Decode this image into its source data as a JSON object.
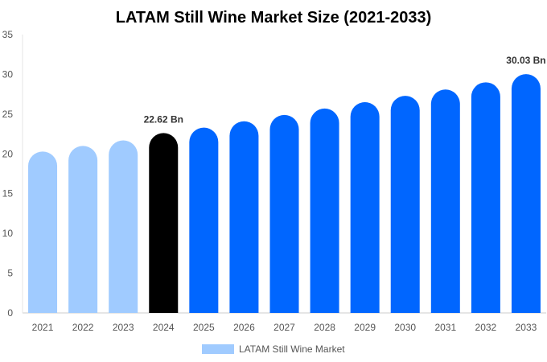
{
  "chart_data": {
    "type": "bar",
    "title": "LATAM Still Wine Market Size (2021-2033)",
    "categories": [
      "2021",
      "2022",
      "2023",
      "2024",
      "2025",
      "2026",
      "2027",
      "2028",
      "2029",
      "2030",
      "2031",
      "2032",
      "2033"
    ],
    "series": [
      {
        "name": "LATAM Still Wine Market",
        "values": [
          20.3,
          21.0,
          21.7,
          22.62,
          23.3,
          24.1,
          24.9,
          25.7,
          26.5,
          27.3,
          28.1,
          29.0,
          30.03
        ]
      }
    ],
    "data_labels": [
      {
        "index": 3,
        "text": "22.62 Bn"
      },
      {
        "index": 12,
        "text": "30.03 Bn"
      }
    ],
    "bar_colors": [
      "#a0cbff",
      "#a0cbff",
      "#a0cbff",
      "#000000",
      "#0066ff",
      "#0066ff",
      "#0066ff",
      "#0066ff",
      "#0066ff",
      "#0066ff",
      "#0066ff",
      "#0066ff",
      "#0066ff"
    ],
    "legend_color": "#a0cbff",
    "ylim": [
      0,
      35
    ],
    "yticks": [
      0,
      5,
      10,
      15,
      20,
      25,
      30,
      35
    ],
    "grid": false,
    "legend_position": "bottom"
  }
}
